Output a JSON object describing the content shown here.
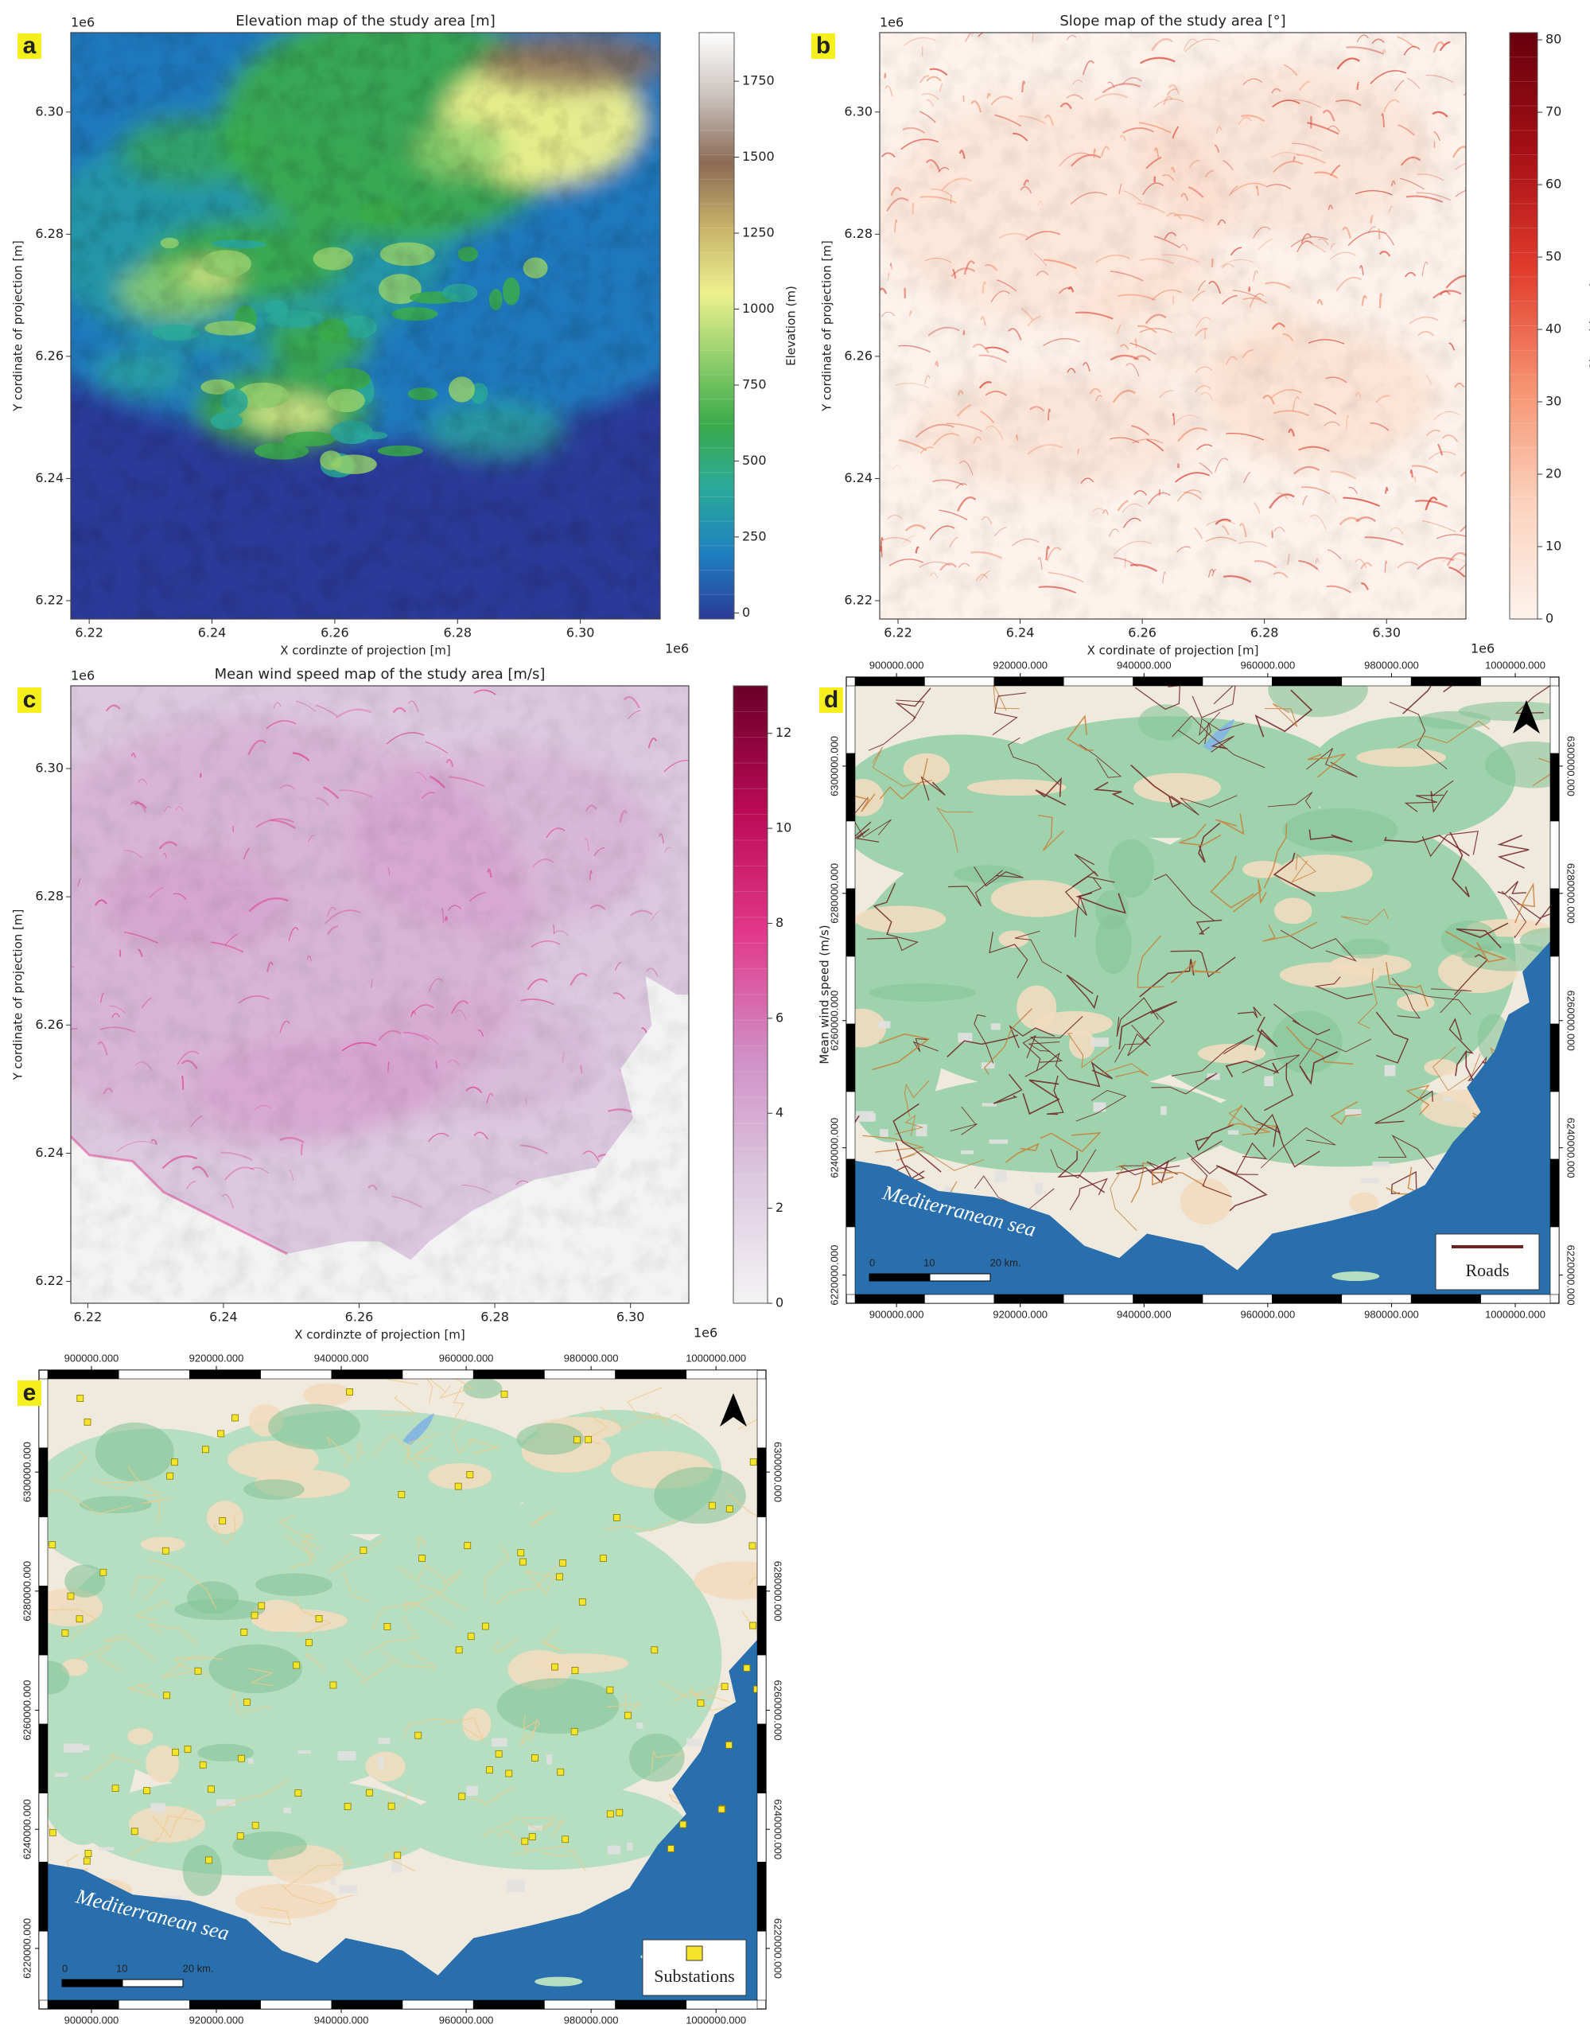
{
  "chart_data": [
    {
      "type": "heatmap",
      "label": "a",
      "title": "Elevation map of the study area [m]",
      "xlabel": "X cordinzte of projection [m]",
      "ylabel": "Y cordinate of projection [m]",
      "x_offset": "1e6",
      "y_offset": "1e6",
      "xlim": [
        6.217,
        6.313
      ],
      "ylim": [
        6.217,
        6.313
      ],
      "xticks": [
        6.22,
        6.24,
        6.26,
        6.28,
        {
          "value": 6.3,
          "label": "6.30"
        }
      ],
      "yticks": [
        6.22,
        6.24,
        6.26,
        6.28,
        {
          "value": 6.3,
          "label": "6.30"
        }
      ],
      "colorbar": {
        "label": "Elevation (m)",
        "lim": [
          -20,
          1910
        ],
        "ticks": [
          0,
          250,
          500,
          750,
          1000,
          1250,
          1500,
          1750
        ],
        "colors": [
          "#2b3a98",
          "#1e80c0",
          "#2aa99a",
          "#3bab4a",
          "#92cf6d",
          "#eef08e",
          "#c8b36a",
          "#8b6a55",
          "#c9c0bb",
          "#ffffff"
        ]
      }
    },
    {
      "type": "heatmap",
      "label": "b",
      "title": "Slope map of the study area [°]",
      "xlabel": "X cordinate of projection [m]",
      "ylabel": "Y cordinate of projection [m]",
      "x_offset": "1e6",
      "y_offset": "1e6",
      "xlim": [
        6.217,
        6.313
      ],
      "ylim": [
        6.217,
        6.313
      ],
      "xticks": [
        6.22,
        6.24,
        6.26,
        6.28,
        {
          "value": 6.3,
          "label": "6.30"
        }
      ],
      "yticks": [
        6.22,
        6.24,
        6.26,
        6.28,
        {
          "value": 6.3,
          "label": "6.30"
        }
      ],
      "colorbar": {
        "label": "Slope (degree)",
        "lim": [
          0,
          81
        ],
        "ticks": [
          0,
          10,
          20,
          30,
          40,
          50,
          60,
          70,
          80
        ],
        "colors": [
          "#fdf3ec",
          "#fbd2bd",
          "#f6916f",
          "#e03a2c",
          "#a50f15",
          "#67000d"
        ]
      }
    },
    {
      "type": "heatmap",
      "label": "c",
      "title": "Mean wind speed map of the study area [m/s]",
      "xlabel": "X cordinzte of projection [m]",
      "ylabel": "Y cordinate of projection [m]",
      "x_offset": "1e6",
      "y_offset": "1e6",
      "xlim": [
        6.2175,
        6.3086
      ],
      "ylim": [
        6.2166,
        6.3129
      ],
      "xticks": [
        6.22,
        6.24,
        6.26,
        6.28,
        {
          "value": 6.3,
          "label": "6.30"
        }
      ],
      "yticks": [
        6.22,
        6.24,
        6.26,
        6.28,
        {
          "value": 6.3,
          "label": "6.30"
        }
      ],
      "colorbar": {
        "label": "Mean wind speed (m/s)",
        "lim": [
          0,
          13
        ],
        "ticks": [
          0,
          2,
          4,
          6,
          8,
          10,
          12
        ],
        "colors": [
          "#f3f3f3",
          "#dcc9e0",
          "#d08fc6",
          "#e2388b",
          "#b90a55",
          "#6a0028"
        ]
      }
    }
  ],
  "maps": [
    {
      "label": "d",
      "xlim": [
        893300,
        1005650
      ],
      "ylim": [
        6216950,
        6312620
      ],
      "xticks": [
        {
          "value": 900000,
          "label": "900000.000"
        },
        {
          "value": 920000,
          "label": "920000.000"
        },
        {
          "value": 940000,
          "label": "940000.000"
        },
        {
          "value": 960000,
          "label": "960000.000"
        },
        {
          "value": 980000,
          "label": "980000.000"
        },
        {
          "value": 1000000,
          "label": "1000000.000"
        }
      ],
      "yticks": [
        {
          "value": 6220000,
          "label": "6220000.000"
        },
        {
          "value": 6240000,
          "label": "6240000.000"
        },
        {
          "value": 6260000,
          "label": "6260000.000"
        },
        {
          "value": 6280000,
          "label": "6280000.000"
        },
        {
          "value": 6300000,
          "label": "6300000.000"
        }
      ],
      "sea_label": "Mediterranean sea",
      "scale_labels": [
        "0",
        "10",
        "20 km."
      ],
      "legend": "Roads"
    },
    {
      "label": "e",
      "xlim": [
        893000,
        1006600
      ],
      "ylim": [
        6211300,
        6315650
      ],
      "xticks": [
        {
          "value": 900000,
          "label": "900000.000"
        },
        {
          "value": 920000,
          "label": "920000.000"
        },
        {
          "value": 940000,
          "label": "940000.000"
        },
        {
          "value": 960000,
          "label": "960000.000"
        },
        {
          "value": 980000,
          "label": "980000.000"
        },
        {
          "value": 1000000,
          "label": "1000000.000"
        }
      ],
      "yticks": [
        {
          "value": 6220000,
          "label": "6220000.000"
        },
        {
          "value": 6240000,
          "label": "6240000.000"
        },
        {
          "value": 6260000,
          "label": "6260000.000"
        },
        {
          "value": 6280000,
          "label": "6280000.000"
        },
        {
          "value": 6300000,
          "label": "6300000.000"
        }
      ],
      "sea_label": "Mediterranean sea",
      "scale_labels": [
        "0",
        "10",
        "20 km."
      ],
      "legend": "Substations"
    }
  ]
}
